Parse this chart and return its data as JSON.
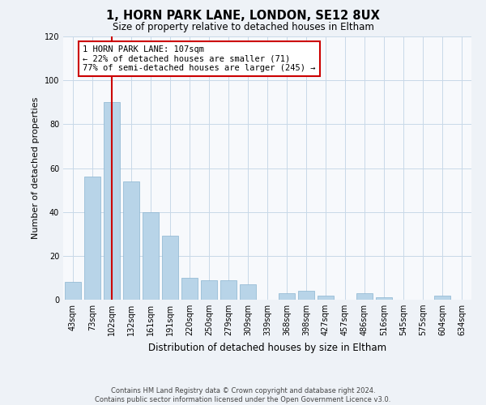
{
  "title": "1, HORN PARK LANE, LONDON, SE12 8UX",
  "subtitle": "Size of property relative to detached houses in Eltham",
  "xlabel": "Distribution of detached houses by size in Eltham",
  "ylabel": "Number of detached properties",
  "categories": [
    "43sqm",
    "73sqm",
    "102sqm",
    "132sqm",
    "161sqm",
    "191sqm",
    "220sqm",
    "250sqm",
    "279sqm",
    "309sqm",
    "339sqm",
    "368sqm",
    "398sqm",
    "427sqm",
    "457sqm",
    "486sqm",
    "516sqm",
    "545sqm",
    "575sqm",
    "604sqm",
    "634sqm"
  ],
  "values": [
    8,
    56,
    90,
    54,
    40,
    29,
    10,
    9,
    9,
    7,
    0,
    3,
    4,
    2,
    0,
    3,
    1,
    0,
    0,
    2,
    0
  ],
  "bar_color": "#b8d4e8",
  "bar_edge_color": "#8ab4d0",
  "vline_index": 2,
  "vline_color": "#cc0000",
  "annotation_line1": "1 HORN PARK LANE: 107sqm",
  "annotation_line2": "← 22% of detached houses are smaller (71)",
  "annotation_line3": "77% of semi-detached houses are larger (245) →",
  "annotation_box_color": "#ffffff",
  "annotation_box_edge": "#cc0000",
  "ylim": [
    0,
    120
  ],
  "yticks": [
    0,
    20,
    40,
    60,
    80,
    100,
    120
  ],
  "footer_line1": "Contains HM Land Registry data © Crown copyright and database right 2024.",
  "footer_line2": "Contains public sector information licensed under the Open Government Licence v3.0.",
  "background_color": "#eef2f7",
  "plot_bg_color": "#f7f9fc",
  "grid_color": "#c8d8e8",
  "title_fontsize": 10.5,
  "subtitle_fontsize": 8.5,
  "ylabel_fontsize": 8,
  "xlabel_fontsize": 8.5,
  "tick_fontsize": 7,
  "annotation_fontsize": 7.5,
  "footer_fontsize": 6
}
